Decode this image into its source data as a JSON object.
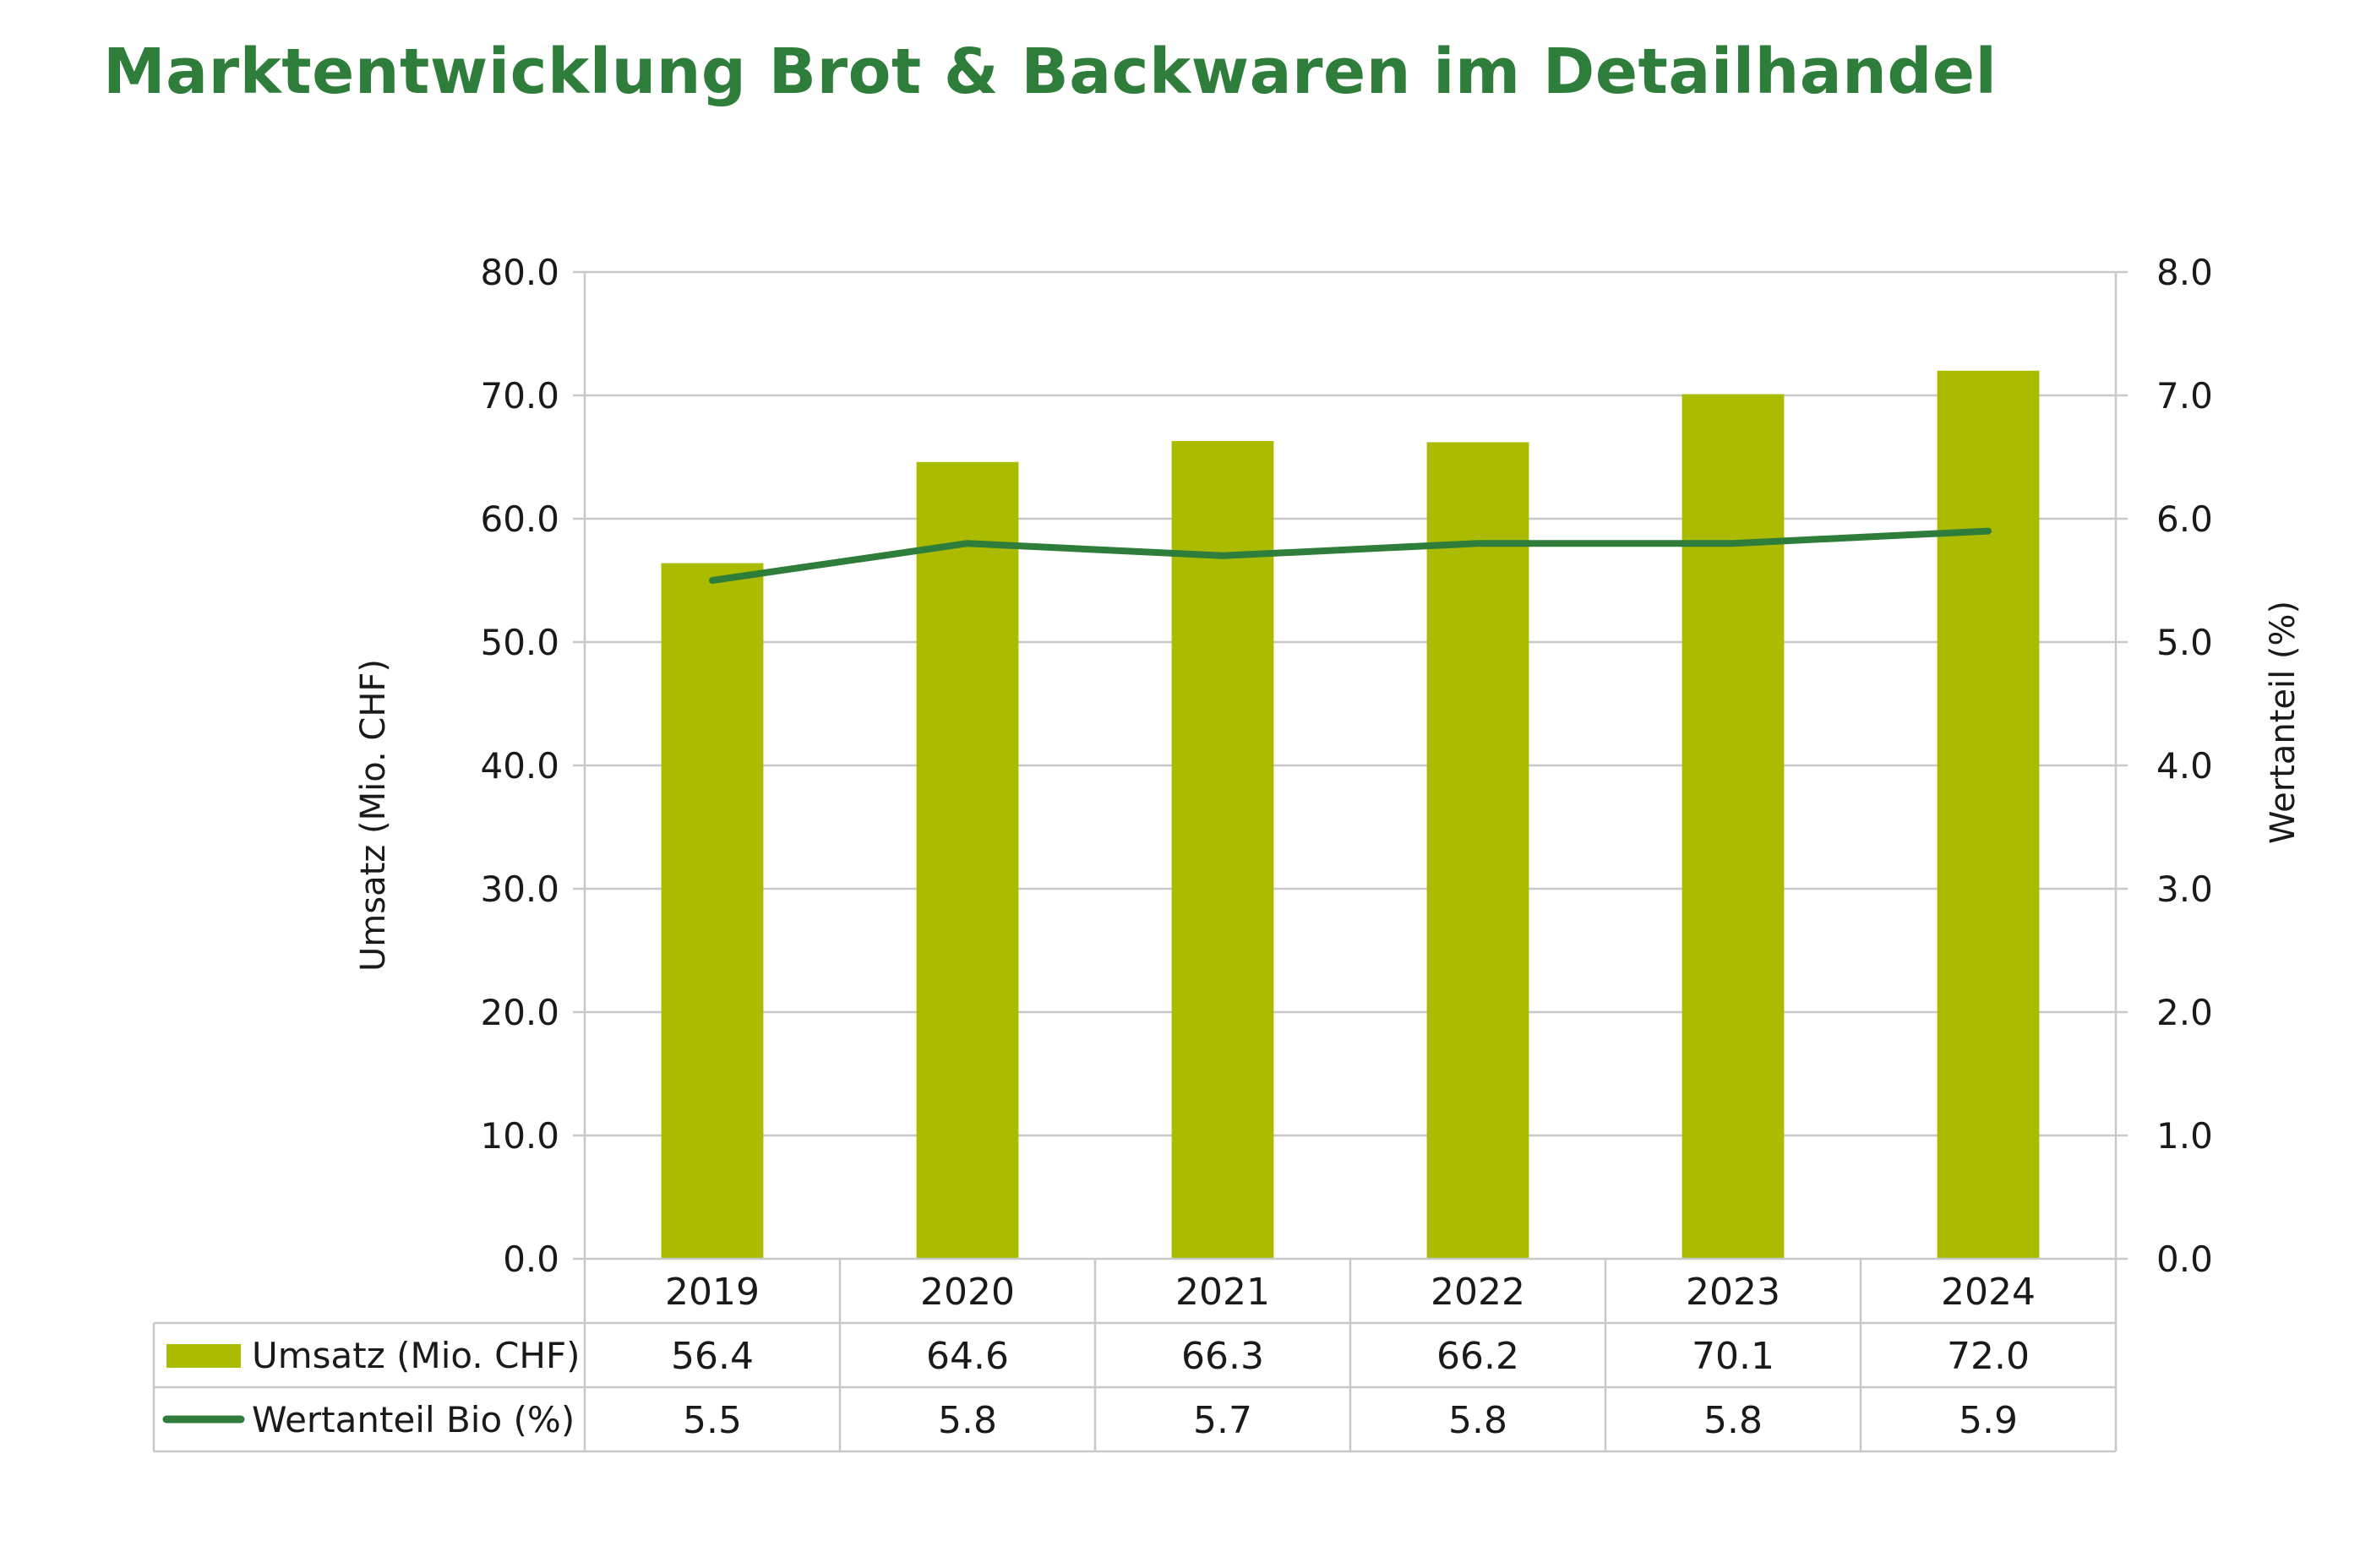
{
  "chart_data": {
    "type": "bar",
    "title": "Marktentwicklung Brot & Backwaren im Detailhandel",
    "categories": [
      "2019",
      "2020",
      "2021",
      "2022",
      "2023",
      "2024"
    ],
    "series": [
      {
        "name": "Umsatz (Mio. CHF)",
        "type": "bar",
        "axis": "left",
        "values": [
          56.4,
          64.6,
          66.3,
          66.2,
          70.1,
          72.0
        ],
        "labels": [
          "56.4",
          "64.6",
          "66.3",
          "66.2",
          "70.1",
          "72.0"
        ]
      },
      {
        "name": "Wertanteil Bio (%)",
        "type": "line",
        "axis": "right",
        "values": [
          5.5,
          5.8,
          5.7,
          5.8,
          5.8,
          5.9
        ],
        "labels": [
          "5.5",
          "5.8",
          "5.7",
          "5.8",
          "5.8",
          "5.9"
        ]
      }
    ],
    "ylabel": "Umsatz (Mio. CHF)",
    "ylim": [
      0,
      80
    ],
    "yticks": [
      "0.0",
      "10.0",
      "20.0",
      "30.0",
      "40.0",
      "50.0",
      "60.0",
      "70.0",
      "80.0"
    ],
    "y2label": "Wertanteil (%)",
    "y2lim": [
      0,
      8
    ],
    "y2ticks": [
      "0.0",
      "1.0",
      "2.0",
      "3.0",
      "4.0",
      "5.0",
      "6.0",
      "7.0",
      "8.0"
    ],
    "grid": true,
    "legend": "data-table-below",
    "colors": {
      "bar": "#abbc00",
      "line": "#2e7d3a",
      "grid": "#c8c8c8",
      "title": "#2e7d3a"
    }
  }
}
